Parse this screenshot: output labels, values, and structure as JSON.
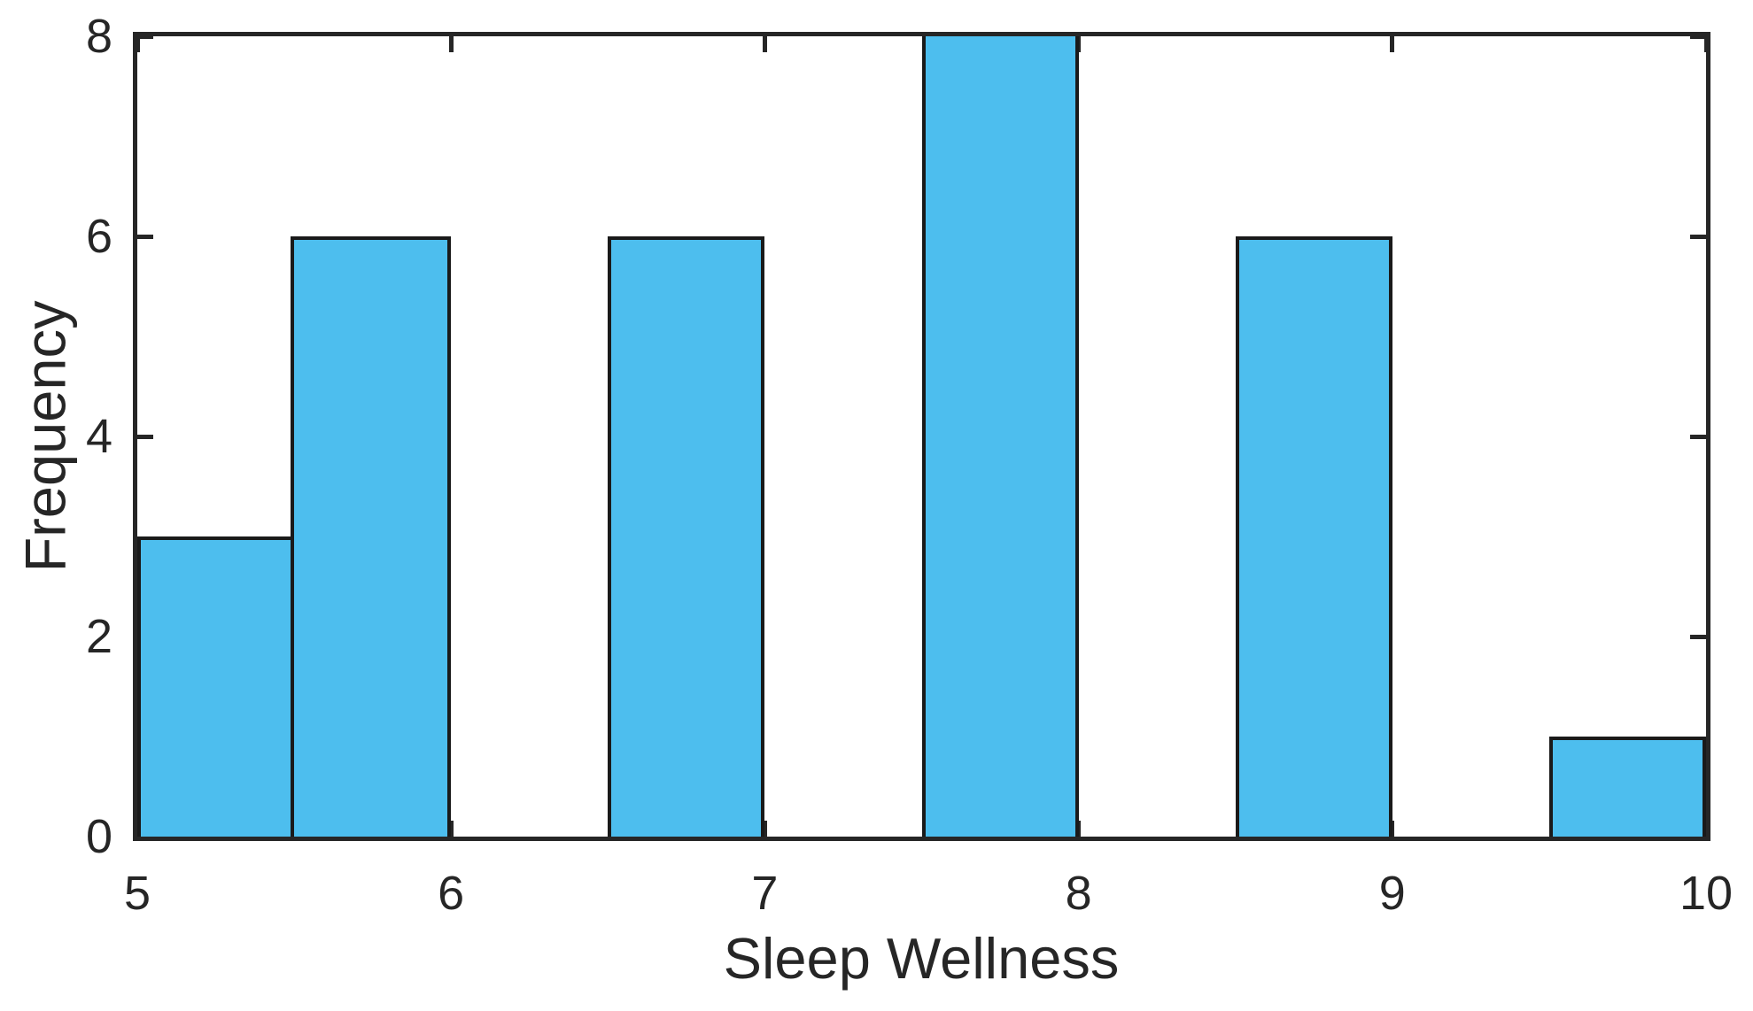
{
  "figure": {
    "background_color": "#FFFFFF",
    "style": "matlab-box-axes-inward-ticks"
  },
  "chart_data": {
    "type": "bar",
    "subtype": "histogram",
    "title": "",
    "xlabel": "Sleep Wellness",
    "ylabel": "Frequency",
    "xlim": [
      5,
      10
    ],
    "ylim": [
      0,
      8
    ],
    "xticks": [
      5,
      6,
      7,
      8,
      9,
      10
    ],
    "yticks": [
      0,
      2,
      4,
      6,
      8
    ],
    "bin_width": 0.5,
    "bin_edges": [
      5,
      5.5,
      6,
      6.5,
      7,
      7.5,
      8,
      8.5,
      9,
      9.5,
      10
    ],
    "counts": [
      3,
      6,
      0,
      6,
      0,
      8,
      0,
      6,
      0,
      1
    ],
    "categories": [
      "5-5.5",
      "5.5-6",
      "6-6.5",
      "6.5-7",
      "7-7.5",
      "7.5-8",
      "8-8.5",
      "8.5-9",
      "9-9.5",
      "9.5-10"
    ],
    "values": [
      3,
      6,
      0,
      6,
      0,
      8,
      0,
      6,
      0,
      1
    ],
    "grid": false,
    "legend": null,
    "bar_fill_color": "#4DBEEE",
    "bar_edge_color": "#1A1A1A",
    "axis_color": "#262626",
    "tick_direction": "in"
  }
}
